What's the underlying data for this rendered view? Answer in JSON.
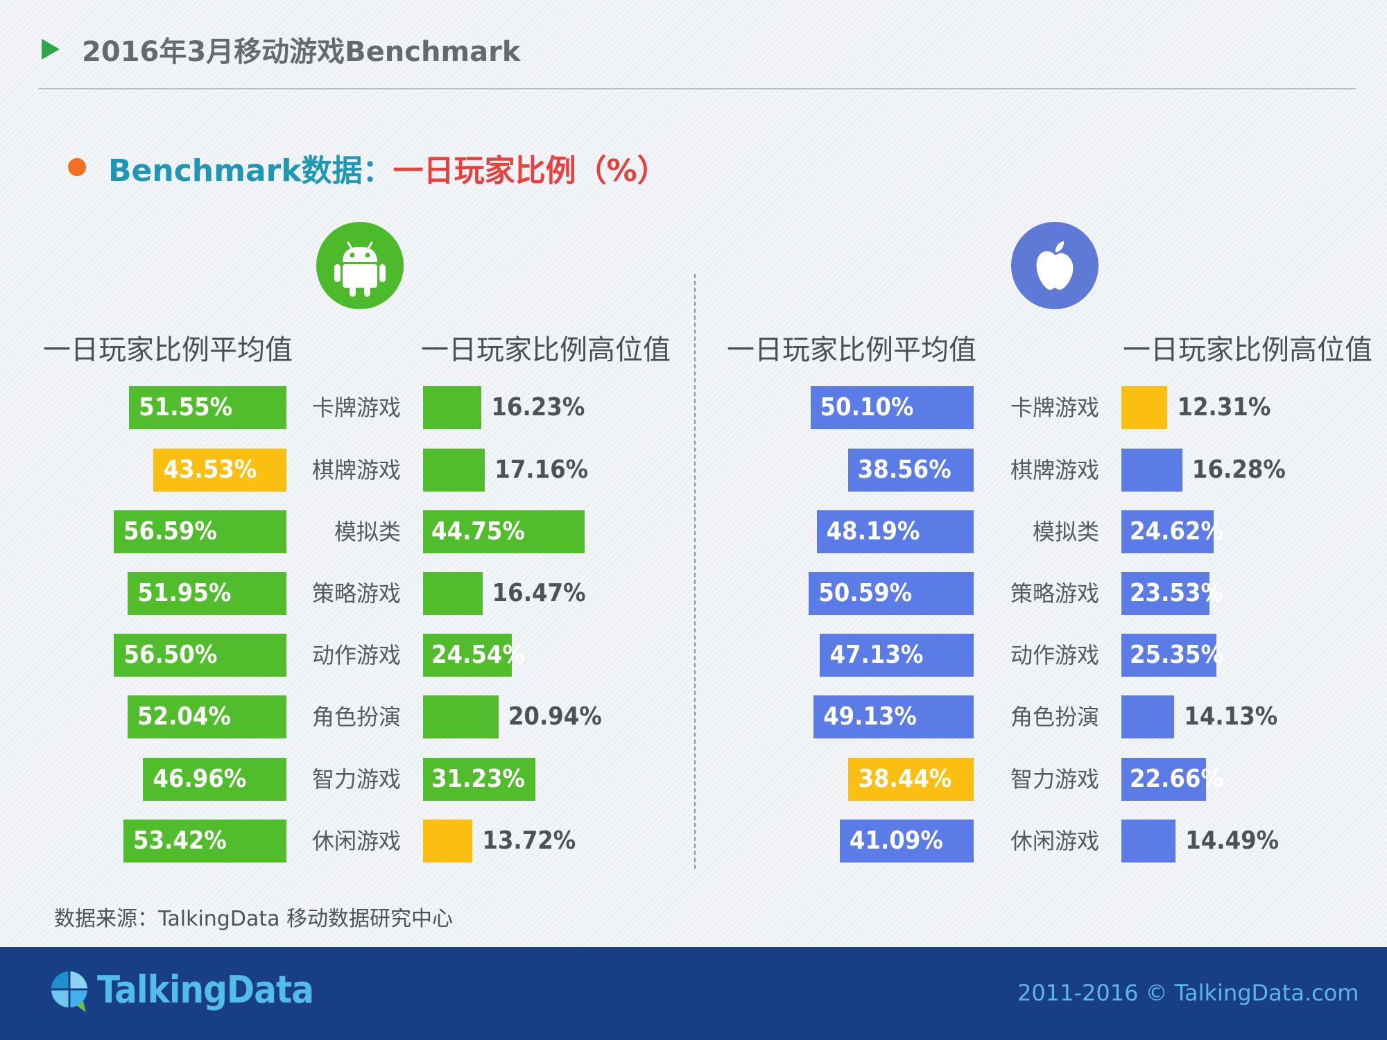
{
  "header": {
    "title": "2016年3月移动游戏Benchmark"
  },
  "section": {
    "title_lead": "Benchmark数据：",
    "title_emph": "一日玩家比例（%）"
  },
  "platforms": {
    "android_icon": "android-icon",
    "apple_icon": "apple-icon"
  },
  "colors": {
    "android_green": "#4cba2b",
    "bar_green": "#52bd2c",
    "ios_blue": "#5b7ce6",
    "highlight_yellow": "#fbbf11"
  },
  "chart_data": [
    {
      "type": "bar",
      "platform": "Android",
      "orientation": "horizontal",
      "categories": [
        "卡牌游戏",
        "棋牌游戏",
        "模拟类",
        "策略游戏",
        "动作游戏",
        "角色扮演",
        "智力游戏",
        "休闲游戏"
      ],
      "series": [
        {
          "name": "一日玩家比例平均值",
          "direction": "left",
          "values": [
            51.55,
            43.53,
            56.59,
            51.95,
            56.5,
            52.04,
            46.96,
            53.42
          ],
          "labels": [
            "51.55%",
            "43.53%",
            "56.59%",
            "51.95%",
            "56.50%",
            "52.04%",
            "46.96%",
            "53.42%"
          ],
          "highlight_index": 1
        },
        {
          "name": "一日玩家比例高位值",
          "direction": "right",
          "values": [
            16.23,
            17.16,
            44.75,
            16.47,
            24.54,
            20.94,
            31.23,
            13.72
          ],
          "labels": [
            "16.23%",
            "17.16%",
            "44.75%",
            "16.47%",
            "24.54%",
            "20.94%",
            "31.23%",
            "13.72%"
          ],
          "highlight_index": 7
        }
      ]
    },
    {
      "type": "bar",
      "platform": "iOS",
      "orientation": "horizontal",
      "categories": [
        "卡牌游戏",
        "棋牌游戏",
        "模拟类",
        "策略游戏",
        "动作游戏",
        "角色扮演",
        "智力游戏",
        "休闲游戏"
      ],
      "series": [
        {
          "name": "一日玩家比例平均值",
          "direction": "left",
          "values": [
            50.1,
            38.56,
            48.19,
            50.59,
            47.13,
            49.13,
            38.44,
            41.09
          ],
          "labels": [
            "50.10%",
            "38.56%",
            "48.19%",
            "50.59%",
            "47.13%",
            "49.13%",
            "38.44%",
            "41.09%"
          ],
          "highlight_index": 6
        },
        {
          "name": "一日玩家比例高位值",
          "direction": "right",
          "values": [
            12.31,
            16.28,
            24.62,
            23.53,
            25.35,
            14.13,
            22.66,
            14.49
          ],
          "labels": [
            "12.31%",
            "16.28%",
            "24.62%",
            "23.53%",
            "25.35%",
            "14.13%",
            "22.66%",
            "14.49%"
          ],
          "highlight_index": 0
        }
      ]
    }
  ],
  "footer": {
    "source": "数据来源：TalkingData 移动数据研究中心",
    "brand": "TalkingData",
    "brand_icon": "talkingdata-logo-icon",
    "copyright": "2011-2016 © TalkingData.com"
  }
}
